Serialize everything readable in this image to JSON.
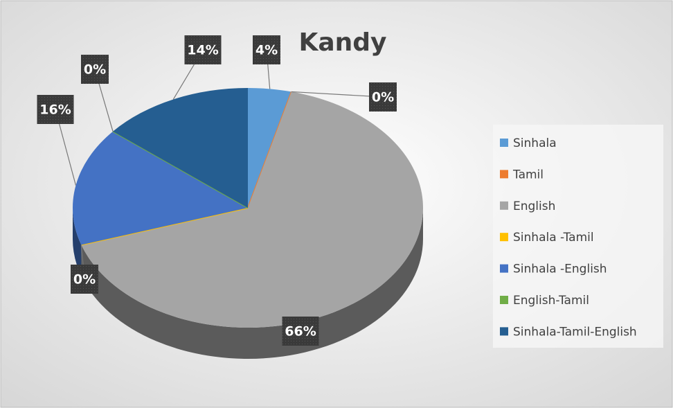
{
  "chart_data": {
    "type": "pie",
    "title": "Kandy",
    "categories": [
      "Sinhala",
      "Tamil",
      "English",
      "Sinhala -Tamil",
      "Sinhala -English",
      "English-Tamil",
      "Sinhala-Tamil-English"
    ],
    "values": [
      4,
      0,
      66,
      0,
      16,
      0,
      14
    ],
    "value_labels": [
      "4%",
      "0%",
      "66%",
      "0%",
      "16%",
      "0%",
      "14%"
    ],
    "colors": [
      "#5b9bd5",
      "#ed7d31",
      "#a5a5a5",
      "#ffc000",
      "#4472c4",
      "#70ad47",
      "#255e91"
    ],
    "legend": "right"
  }
}
